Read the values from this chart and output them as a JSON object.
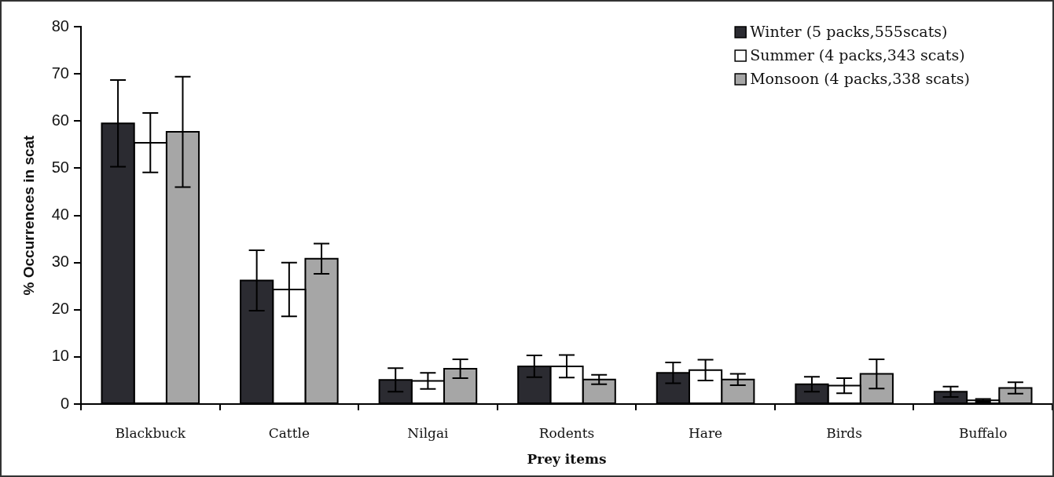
{
  "chart_data": {
    "type": "bar",
    "xlabel": "Prey items",
    "ylabel": "% Occurrences in scat",
    "categories": [
      "Blackbuck",
      "Cattle",
      "Nilgai",
      "Rodents",
      "Hare",
      "Birds",
      "Buffalo"
    ],
    "series": [
      {
        "name": "Winter (5 packs,555scats)",
        "color": "#2b2b31",
        "values": [
          59.5,
          26.2,
          5.1,
          8.0,
          6.6,
          4.2,
          2.6
        ],
        "errors": [
          9.2,
          6.4,
          2.5,
          2.3,
          2.2,
          1.6,
          1.1
        ]
      },
      {
        "name": "Summer (4 packs,343 scats)",
        "color": "#ffffff",
        "values": [
          55.4,
          24.3,
          4.9,
          8.0,
          7.2,
          3.9,
          0.8
        ],
        "errors": [
          6.3,
          5.7,
          1.7,
          2.4,
          2.2,
          1.6,
          0.3
        ]
      },
      {
        "name": "Monsoon (4 packs,338 scats)",
        "color": "#a6a6a6",
        "values": [
          57.7,
          30.8,
          7.5,
          5.2,
          5.2,
          6.4,
          3.4
        ],
        "errors": [
          11.7,
          3.2,
          2.0,
          1.0,
          1.2,
          3.1,
          1.2
        ]
      }
    ],
    "ylim": [
      0,
      80
    ],
    "yticks": [
      0,
      10,
      20,
      30,
      40,
      50,
      60,
      70,
      80
    ],
    "legend": "top right",
    "grid": false
  }
}
